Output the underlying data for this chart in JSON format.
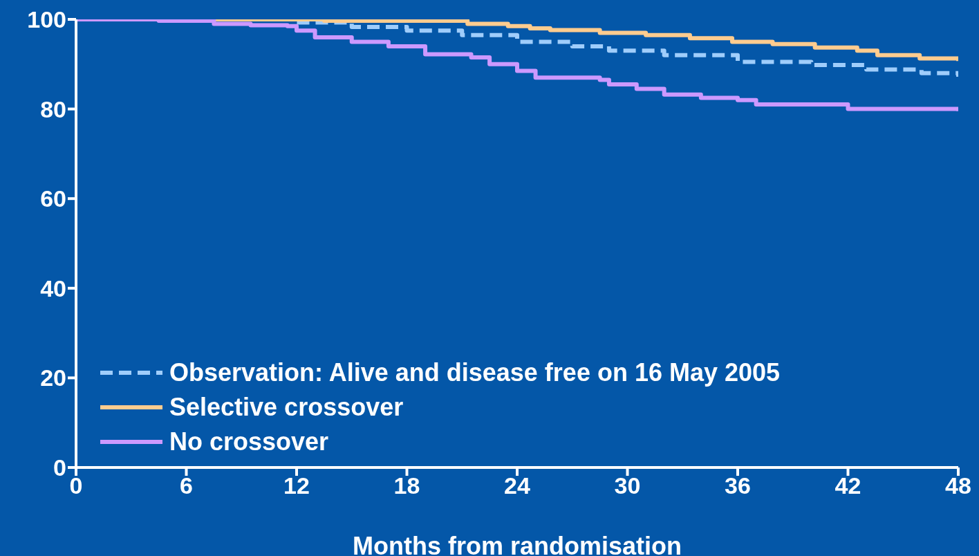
{
  "chart_data": {
    "type": "step",
    "xlabel": "Months from randomisation",
    "xlim": [
      0,
      48
    ],
    "xticks": [
      0,
      6,
      12,
      18,
      24,
      30,
      36,
      42,
      48
    ],
    "ylim": [
      0,
      100
    ],
    "yticks": [
      0,
      20,
      40,
      60,
      80,
      100
    ],
    "grid": false,
    "legend": "bottom left",
    "marker": "none",
    "series": [
      {
        "name": "Observation: Alive and disease free on 16 May 2005",
        "color": "#9fcdfb",
        "line_style": "dashed",
        "x": [
          0,
          11,
          12,
          15,
          18,
          21,
          24,
          27,
          29,
          32,
          36,
          40,
          43,
          46,
          48
        ],
        "values": [
          100,
          100,
          99.3,
          98.3,
          97.5,
          96.5,
          95,
          94,
          93,
          92,
          90.5,
          89.8,
          88.8,
          88,
          87.2
        ]
      },
      {
        "name": "Selective crossover",
        "color": "#ffcc8f",
        "line_style": "solid",
        "x": [
          0,
          13.5,
          21.3,
          23.5,
          24.7,
          25.8,
          28.5,
          31,
          33.4,
          35.7,
          37.9,
          40.2,
          42.5,
          43.6,
          45.9,
          48
        ],
        "values": [
          100,
          99.7,
          99,
          98.5,
          98,
          97.6,
          97,
          96.5,
          95.8,
          95,
          94.5,
          93.7,
          93,
          92,
          91.3,
          90.7
        ]
      },
      {
        "name": "No crossover",
        "color": "#cc99ff",
        "line_style": "solid",
        "x": [
          0,
          4.5,
          7.5,
          9.5,
          11.5,
          12,
          13,
          15,
          17,
          19,
          21.5,
          22.5,
          24,
          25,
          28.5,
          29,
          30.5,
          32,
          34,
          36,
          37,
          41,
          42,
          47,
          48
        ],
        "values": [
          100,
          99.7,
          99,
          98.7,
          98.5,
          97.5,
          96,
          95,
          94,
          92.2,
          91.5,
          90,
          88.5,
          87,
          86.5,
          85.5,
          84.5,
          83.2,
          82.5,
          82,
          81,
          81,
          80,
          80,
          79.5
        ]
      }
    ]
  }
}
